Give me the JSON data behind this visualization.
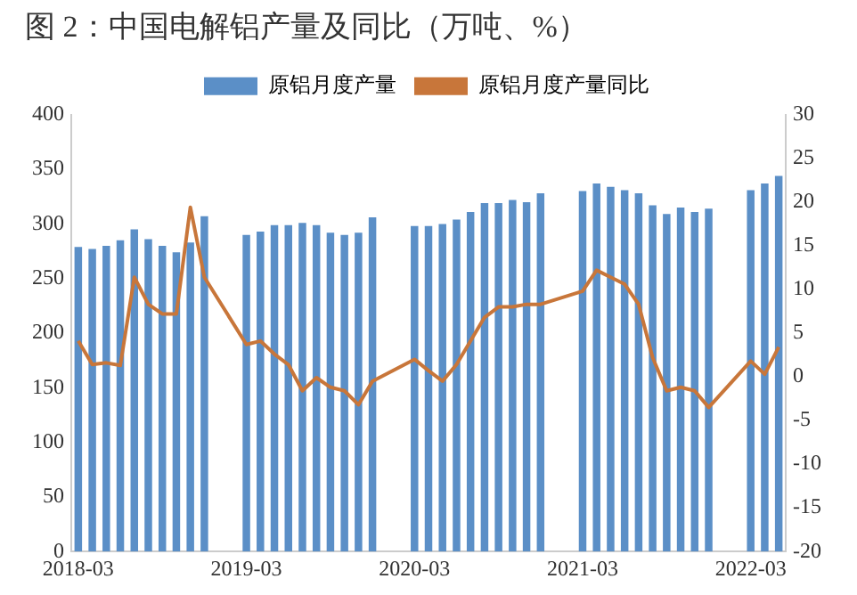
{
  "chart_data": {
    "type": "bar",
    "title": "图 2：中国电解铝产量及同比（万吨、%）",
    "categories": [
      "2018-03",
      null,
      null,
      null,
      null,
      null,
      null,
      null,
      null,
      null,
      null,
      null,
      "2019-03",
      null,
      null,
      null,
      null,
      null,
      null,
      null,
      null,
      null,
      null,
      null,
      "2020-03",
      null,
      null,
      null,
      null,
      null,
      null,
      null,
      null,
      null,
      null,
      null,
      "2021-03",
      null,
      null,
      null,
      null,
      null,
      null,
      null,
      null,
      null,
      null,
      null,
      "2022-03",
      null,
      null
    ],
    "series": [
      {
        "name": "原铝月度产量",
        "color": "#5b8fc7",
        "values": [
          279,
          277,
          280,
          285,
          295,
          286,
          280,
          274,
          283,
          307,
          null,
          null,
          290,
          293,
          299,
          299,
          301,
          299,
          292,
          290,
          292,
          306,
          null,
          null,
          298,
          298,
          300,
          304,
          311,
          319,
          319,
          322,
          320,
          328,
          null,
          null,
          330,
          337,
          334,
          331,
          328,
          317,
          309,
          315,
          311,
          314,
          null,
          null,
          331,
          337,
          344
        ]
      },
      {
        "name": "原铝月度产量同比",
        "type": "line",
        "axis": "y2",
        "color": "#c8763a",
        "values": [
          4.1,
          1.4,
          1.6,
          1.3,
          11.4,
          8.3,
          7.2,
          7.2,
          19.4,
          11.4,
          null,
          null,
          3.7,
          4.1,
          2.6,
          1.4,
          -1.6,
          -0.1,
          -1.2,
          -1.6,
          -3.2,
          -0.5,
          null,
          null,
          2,
          0.7,
          -0.5,
          1.4,
          4.1,
          6.8,
          8,
          8,
          8.3,
          8.3,
          null,
          null,
          9.8,
          12.2,
          11.4,
          10.6,
          8.3,
          2.2,
          -1.6,
          -1.2,
          -1.6,
          -3.5,
          null,
          null,
          1.8,
          0.3,
          3.4
        ]
      }
    ],
    "ylim": [
      0,
      400
    ],
    "yticks": [
      0,
      50,
      100,
      150,
      200,
      250,
      300,
      350,
      400
    ],
    "y2lim": [
      -20,
      30
    ],
    "y2ticks": [
      -20,
      -15,
      -10,
      -5,
      0,
      5,
      10,
      15,
      20,
      25,
      30
    ],
    "grid": false,
    "legend": "top",
    "marker": "none"
  }
}
